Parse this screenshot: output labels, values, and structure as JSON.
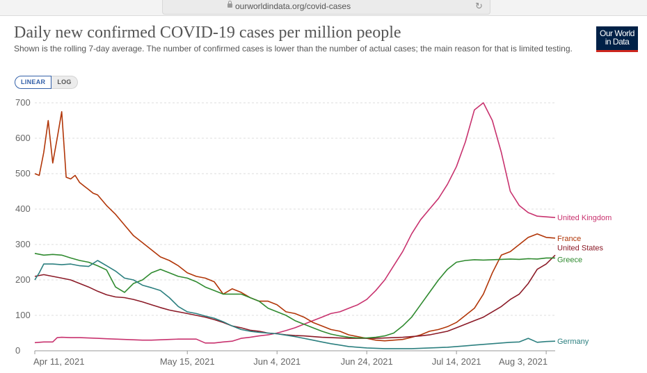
{
  "browser": {
    "url": "ourworldindata.org/covid-cases",
    "reload_icon": "reload-icon"
  },
  "header": {
    "title": "Daily new confirmed COVID-19 cases per million people",
    "subtitle": "Shown is the rolling 7-day average. The number of confirmed cases is lower than the number of actual cases; the main reason for that is limited testing.",
    "logo_line1": "Our World",
    "logo_line2": "in Data"
  },
  "controls": {
    "linear_label": "LINEAR",
    "log_label": "LOG"
  },
  "colors": {
    "United Kingdom": "#c8326e",
    "France": "#b13507",
    "United States": "#8b1a27",
    "Greece": "#2f8a2f",
    "Germany": "#2b7f7f"
  },
  "chart_data": {
    "type": "line",
    "title": "Daily new confirmed COVID-19 cases per million people",
    "xlabel": "",
    "ylabel": "",
    "ylim": [
      0,
      700
    ],
    "yticks": [
      0,
      100,
      200,
      300,
      400,
      500,
      600,
      700
    ],
    "ytick_labels": [
      "0",
      "100",
      "200",
      "300",
      "400",
      "500",
      "600",
      "700"
    ],
    "xlim": [
      0,
      116
    ],
    "xticks": [
      0,
      34,
      54,
      74,
      94,
      114
    ],
    "xtick_labels": [
      "Apr 11, 2021",
      "May 15, 2021",
      "Jun 4, 2021",
      "Jun 24, 2021",
      "Jul 14, 2021",
      "Aug 3, 2021"
    ],
    "x_unit": "days since Apr 11, 2021",
    "series": [
      {
        "name": "United Kingdom",
        "x": [
          0,
          2,
          4,
          5,
          6,
          8,
          10,
          12,
          14,
          16,
          18,
          20,
          22,
          24,
          26,
          28,
          30,
          32,
          34,
          36,
          38,
          40,
          42,
          44,
          46,
          48,
          50,
          52,
          54,
          56,
          58,
          60,
          62,
          64,
          66,
          68,
          70,
          72,
          74,
          76,
          78,
          80,
          82,
          84,
          86,
          88,
          90,
          92,
          94,
          96,
          98,
          100,
          102,
          104,
          106,
          108,
          110,
          112,
          114,
          116
        ],
        "values": [
          23,
          25,
          25,
          37,
          38,
          37,
          37,
          36,
          35,
          34,
          33,
          32,
          31,
          30,
          30,
          31,
          32,
          33,
          33,
          33,
          22,
          22,
          25,
          27,
          35,
          38,
          42,
          45,
          50,
          57,
          65,
          75,
          85,
          95,
          105,
          110,
          120,
          130,
          145,
          170,
          200,
          240,
          280,
          330,
          370,
          400,
          430,
          470,
          520,
          590,
          680,
          700,
          650,
          560,
          450,
          410,
          390,
          380,
          378,
          376
        ]
      },
      {
        "name": "France",
        "x": [
          0,
          1,
          2,
          3,
          4,
          5,
          6,
          7,
          8,
          9,
          10,
          11,
          12,
          13,
          14,
          16,
          18,
          20,
          22,
          24,
          26,
          28,
          30,
          32,
          34,
          36,
          38,
          40,
          42,
          44,
          46,
          48,
          50,
          52,
          54,
          56,
          58,
          60,
          62,
          64,
          66,
          68,
          70,
          72,
          74,
          76,
          78,
          80,
          82,
          84,
          86,
          88,
          90,
          92,
          94,
          96,
          98,
          100,
          102,
          104,
          106,
          108,
          110,
          112,
          114,
          116
        ],
        "values": [
          500,
          495,
          560,
          650,
          530,
          600,
          675,
          490,
          485,
          495,
          475,
          465,
          455,
          445,
          440,
          410,
          385,
          355,
          325,
          305,
          285,
          265,
          255,
          240,
          220,
          210,
          205,
          195,
          160,
          175,
          165,
          150,
          140,
          140,
          130,
          110,
          105,
          95,
          80,
          70,
          60,
          55,
          45,
          40,
          35,
          30,
          28,
          30,
          32,
          38,
          45,
          55,
          60,
          68,
          80,
          100,
          120,
          160,
          220,
          270,
          280,
          300,
          320,
          330,
          320,
          318
        ]
      },
      {
        "name": "United States",
        "x": [
          0,
          2,
          4,
          6,
          8,
          10,
          12,
          14,
          16,
          18,
          20,
          22,
          24,
          26,
          28,
          30,
          32,
          34,
          36,
          38,
          40,
          42,
          44,
          46,
          48,
          50,
          52,
          54,
          56,
          58,
          60,
          62,
          64,
          66,
          68,
          70,
          72,
          74,
          76,
          78,
          80,
          82,
          84,
          86,
          88,
          90,
          92,
          94,
          96,
          98,
          100,
          102,
          104,
          106,
          108,
          110,
          112,
          114,
          116
        ],
        "values": [
          210,
          215,
          210,
          205,
          200,
          190,
          180,
          168,
          158,
          152,
          150,
          145,
          138,
          130,
          122,
          115,
          110,
          105,
          100,
          95,
          88,
          80,
          70,
          65,
          58,
          55,
          50,
          48,
          45,
          43,
          42,
          40,
          38,
          37,
          36,
          35,
          35,
          35,
          35,
          36,
          37,
          38,
          40,
          42,
          45,
          50,
          55,
          65,
          75,
          85,
          95,
          110,
          125,
          145,
          160,
          190,
          230,
          245,
          270
        ]
      },
      {
        "name": "Greece",
        "x": [
          0,
          2,
          4,
          6,
          8,
          10,
          12,
          14,
          16,
          18,
          20,
          22,
          24,
          26,
          28,
          30,
          32,
          34,
          36,
          38,
          40,
          42,
          44,
          46,
          48,
          50,
          52,
          54,
          56,
          58,
          60,
          62,
          64,
          66,
          68,
          70,
          72,
          74,
          76,
          78,
          80,
          82,
          84,
          86,
          88,
          90,
          92,
          94,
          96,
          98,
          100,
          102,
          104,
          106,
          108,
          110,
          112,
          114,
          116
        ],
        "values": [
          275,
          270,
          272,
          270,
          262,
          255,
          250,
          240,
          228,
          180,
          165,
          190,
          200,
          220,
          230,
          220,
          210,
          205,
          195,
          180,
          170,
          160,
          160,
          160,
          150,
          140,
          120,
          110,
          100,
          85,
          75,
          65,
          55,
          47,
          42,
          38,
          36,
          36,
          38,
          42,
          50,
          70,
          95,
          130,
          165,
          200,
          230,
          250,
          255,
          257,
          256,
          257,
          258,
          259,
          258,
          260,
          259,
          262,
          262
        ]
      },
      {
        "name": "Germany",
        "x": [
          0,
          1,
          2,
          4,
          6,
          8,
          10,
          12,
          14,
          16,
          18,
          20,
          22,
          24,
          26,
          28,
          30,
          32,
          34,
          36,
          38,
          40,
          42,
          44,
          46,
          48,
          50,
          52,
          54,
          56,
          58,
          60,
          62,
          64,
          66,
          68,
          70,
          72,
          74,
          76,
          78,
          80,
          82,
          84,
          86,
          88,
          90,
          92,
          94,
          96,
          98,
          100,
          102,
          104,
          106,
          108,
          110,
          112,
          114,
          116
        ],
        "values": [
          200,
          220,
          245,
          245,
          243,
          245,
          240,
          238,
          255,
          240,
          225,
          205,
          200,
          185,
          178,
          170,
          150,
          125,
          110,
          105,
          98,
          92,
          82,
          70,
          60,
          55,
          52,
          50,
          48,
          44,
          40,
          35,
          30,
          25,
          20,
          16,
          12,
          10,
          8,
          7,
          6,
          6,
          6,
          6,
          7,
          8,
          9,
          10,
          12,
          14,
          16,
          18,
          20,
          22,
          24,
          25,
          35,
          24,
          26,
          27
        ]
      }
    ]
  }
}
